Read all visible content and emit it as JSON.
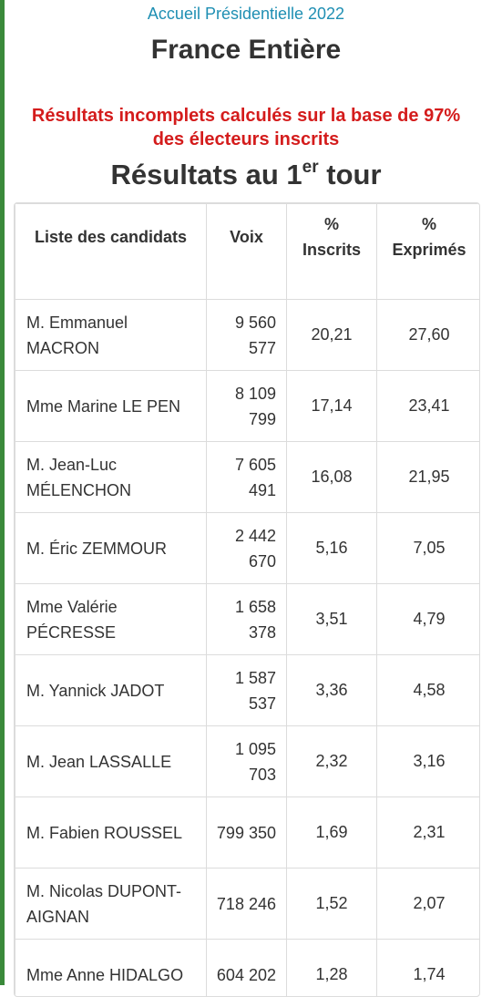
{
  "breadcrumb": "Accueil Présidentielle 2022",
  "page_title": "France Entière",
  "warning": "Résultats incomplets calculés sur la base de 97% des électeurs inscrits",
  "round_title": {
    "prefix": "Résultats au 1",
    "sup": "er",
    "suffix": " tour"
  },
  "table": {
    "headers": {
      "candidates": "Liste des candidats",
      "votes": "Voix",
      "pct_inscrits_symbol": "%",
      "pct_inscrits_label": "Inscrits",
      "pct_exprimes_symbol": "%",
      "pct_exprimes_label": "Exprimés"
    },
    "rows": [
      {
        "name": "M. Emmanuel MACRON",
        "votes": "9 560 577",
        "inscrits": "20,21",
        "exprimes": "27,60"
      },
      {
        "name": "Mme Marine LE PEN",
        "votes": "8 109 799",
        "inscrits": "17,14",
        "exprimes": "23,41"
      },
      {
        "name": "M. Jean-Luc MÉLENCHON",
        "votes": "7 605 491",
        "inscrits": "16,08",
        "exprimes": "21,95"
      },
      {
        "name": "M. Éric ZEMMOUR",
        "votes": "2 442 670",
        "inscrits": "5,16",
        "exprimes": "7,05"
      },
      {
        "name": "Mme Valérie PÉCRESSE",
        "votes": "1 658 378",
        "inscrits": "3,51",
        "exprimes": "4,79"
      },
      {
        "name": "M. Yannick JADOT",
        "votes": "1 587 537",
        "inscrits": "3,36",
        "exprimes": "4,58"
      },
      {
        "name": "M. Jean LASSALLE",
        "votes": "1 095 703",
        "inscrits": "2,32",
        "exprimes": "3,16"
      },
      {
        "name": "M. Fabien ROUSSEL",
        "votes": "799 350",
        "inscrits": "1,69",
        "exprimes": "2,31"
      },
      {
        "name": "M. Nicolas DUPONT-AIGNAN",
        "votes": "718 246",
        "inscrits": "1,52",
        "exprimes": "2,07"
      },
      {
        "name": "Mme Anne HIDALGO",
        "votes": "604 202",
        "inscrits": "1,28",
        "exprimes": "1,74"
      }
    ]
  },
  "colors": {
    "accent_link": "#1f8fb3",
    "warning": "#d41c1c",
    "side_bar": "#3a8a3a"
  }
}
